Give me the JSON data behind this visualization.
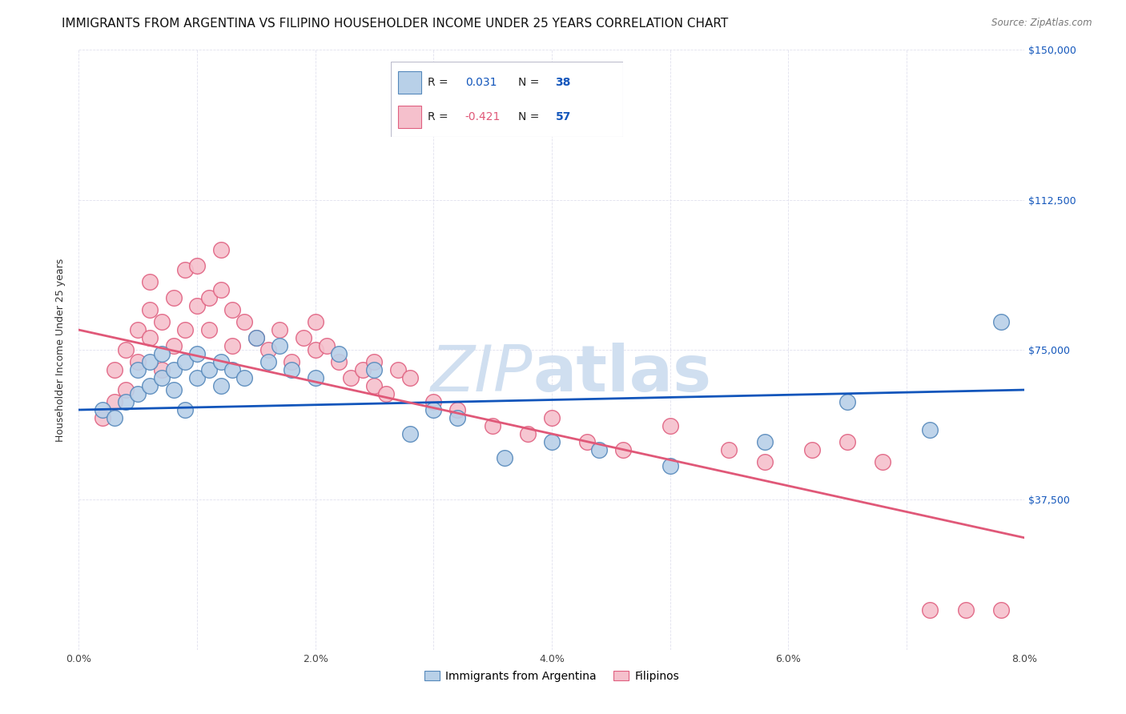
{
  "title": "IMMIGRANTS FROM ARGENTINA VS FILIPINO HOUSEHOLDER INCOME UNDER 25 YEARS CORRELATION CHART",
  "source": "Source: ZipAtlas.com",
  "ylabel": "Householder Income Under 25 years",
  "xmin": 0.0,
  "xmax": 0.08,
  "ymin": 0,
  "ymax": 150000,
  "yticks": [
    0,
    37500,
    75000,
    112500,
    150000
  ],
  "ytick_labels": [
    "",
    "$37,500",
    "$75,000",
    "$112,500",
    "$150,000"
  ],
  "xticks": [
    0.0,
    0.01,
    0.02,
    0.03,
    0.04,
    0.05,
    0.06,
    0.07,
    0.08
  ],
  "xtick_labels": [
    "0.0%",
    "",
    "2.0%",
    "",
    "4.0%",
    "",
    "6.0%",
    "",
    "8.0%"
  ],
  "argentina_color": "#b8d0e8",
  "argentina_edge": "#5588bb",
  "filipinos_color": "#f5c0cc",
  "filipinos_edge": "#e06080",
  "trend_argentina_color": "#1155bb",
  "trend_filipinos_color": "#e05878",
  "watermark_color": "#d0dff0",
  "background_color": "#ffffff",
  "grid_color": "#e0e0ee",
  "title_fontsize": 11,
  "axis_label_fontsize": 9,
  "tick_label_fontsize": 9,
  "legend_R_color": "#1155bb",
  "legend_N_color": "#1155bb",
  "legend_R2_color": "#e05878",
  "legend_N2_color": "#1155bb",
  "R1": "0.031",
  "N1": "38",
  "R2": "-0.421",
  "N2": "57",
  "legend_label1": "Immigrants from Argentina",
  "legend_label2": "Filipinos",
  "argentina_x": [
    0.002,
    0.003,
    0.004,
    0.005,
    0.005,
    0.006,
    0.006,
    0.007,
    0.007,
    0.008,
    0.008,
    0.009,
    0.009,
    0.01,
    0.01,
    0.011,
    0.012,
    0.012,
    0.013,
    0.014,
    0.015,
    0.016,
    0.017,
    0.018,
    0.02,
    0.022,
    0.025,
    0.028,
    0.03,
    0.032,
    0.036,
    0.04,
    0.044,
    0.05,
    0.058,
    0.065,
    0.072,
    0.078
  ],
  "argentina_y": [
    60000,
    58000,
    62000,
    64000,
    70000,
    66000,
    72000,
    68000,
    74000,
    65000,
    70000,
    72000,
    60000,
    68000,
    74000,
    70000,
    72000,
    66000,
    70000,
    68000,
    78000,
    72000,
    76000,
    70000,
    68000,
    74000,
    70000,
    54000,
    60000,
    58000,
    48000,
    52000,
    50000,
    46000,
    52000,
    62000,
    55000,
    82000
  ],
  "filipinos_x": [
    0.002,
    0.003,
    0.003,
    0.004,
    0.004,
    0.005,
    0.005,
    0.006,
    0.006,
    0.006,
    0.007,
    0.007,
    0.008,
    0.008,
    0.009,
    0.009,
    0.01,
    0.01,
    0.011,
    0.011,
    0.012,
    0.012,
    0.013,
    0.013,
    0.014,
    0.015,
    0.016,
    0.017,
    0.018,
    0.019,
    0.02,
    0.02,
    0.021,
    0.022,
    0.023,
    0.024,
    0.025,
    0.025,
    0.026,
    0.027,
    0.028,
    0.03,
    0.032,
    0.035,
    0.038,
    0.04,
    0.043,
    0.046,
    0.05,
    0.055,
    0.058,
    0.062,
    0.065,
    0.068,
    0.072,
    0.075,
    0.078
  ],
  "filipinos_y": [
    58000,
    62000,
    70000,
    65000,
    75000,
    72000,
    80000,
    78000,
    85000,
    92000,
    70000,
    82000,
    76000,
    88000,
    80000,
    95000,
    86000,
    96000,
    88000,
    80000,
    90000,
    100000,
    85000,
    76000,
    82000,
    78000,
    75000,
    80000,
    72000,
    78000,
    75000,
    82000,
    76000,
    72000,
    68000,
    70000,
    72000,
    66000,
    64000,
    70000,
    68000,
    62000,
    60000,
    56000,
    54000,
    58000,
    52000,
    50000,
    56000,
    50000,
    47000,
    50000,
    52000,
    47000,
    10000,
    10000,
    10000
  ],
  "trend_arg_x0": 0.0,
  "trend_arg_y0": 60000,
  "trend_arg_x1": 0.08,
  "trend_arg_y1": 65000,
  "trend_fil_x0": 0.0,
  "trend_fil_y0": 80000,
  "trend_fil_x1": 0.08,
  "trend_fil_y1": 28000
}
